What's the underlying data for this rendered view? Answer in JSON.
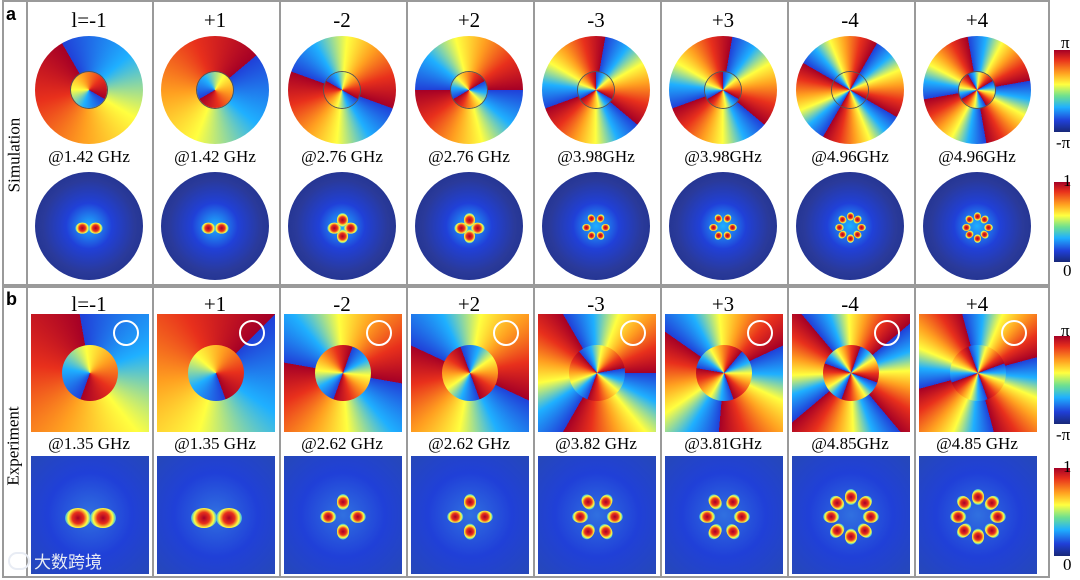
{
  "panels": {
    "a": {
      "letter": "a",
      "side_label": "Simulation"
    },
    "b": {
      "letter": "b",
      "side_label": "Experiment"
    }
  },
  "orders": [
    "l=-1",
    "+1",
    "-2",
    "+2",
    "-3",
    "+3",
    "-4",
    "+4"
  ],
  "simulation_freqs": [
    "@1.42 GHz",
    "@1.42 GHz",
    "@2.76 GHz",
    "@2.76 GHz",
    "@3.98GHz",
    "@3.98GHz",
    "@4.96GHz",
    "@4.96GHz"
  ],
  "experiment_freqs": [
    "@1.35 GHz",
    "@1.35 GHz",
    "@2.62 GHz",
    "@2.62 GHz",
    "@3.82 GHz",
    "@3.81GHz",
    "@4.85GHz",
    "@4.85 GHz"
  ],
  "colorbars": {
    "phase_max": "π",
    "phase_min": "-π",
    "amp_max": "1",
    "amp_min": "0"
  },
  "watermark": "大数跨境",
  "colors": {
    "dark_red": "#a50026",
    "red": "#e8301c",
    "orange": "#ffa020",
    "yellow": "#ffff40",
    "cyan": "#1fb0ff",
    "blue": "#2040d8",
    "dark_blue": "#1a2a80",
    "frame": "#9a9a9a"
  }
}
